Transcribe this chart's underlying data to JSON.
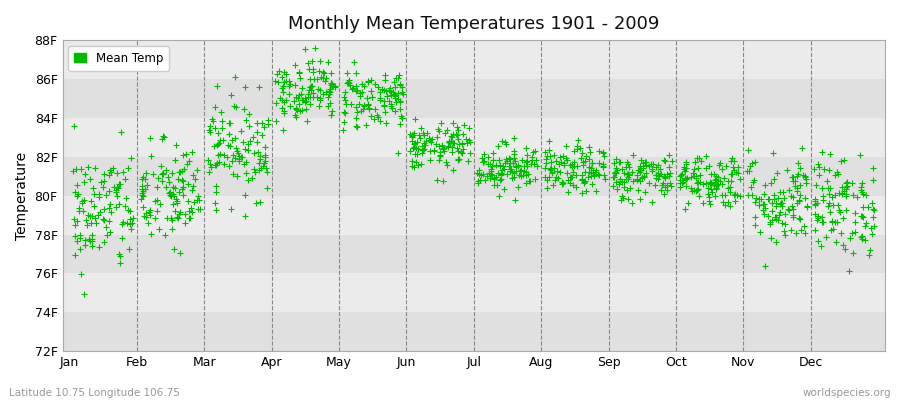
{
  "title": "Monthly Mean Temperatures 1901 - 2009",
  "ylabel": "Temperature",
  "xlabel_labels": [
    "Jan",
    "Feb",
    "Mar",
    "Apr",
    "May",
    "Jun",
    "Jul",
    "Aug",
    "Sep",
    "Oct",
    "Nov",
    "Dec"
  ],
  "ytick_labels": [
    "72F",
    "74F",
    "76F",
    "78F",
    "80F",
    "82F",
    "84F",
    "86F",
    "88F"
  ],
  "ytick_values": [
    72,
    74,
    76,
    78,
    80,
    82,
    84,
    86,
    88
  ],
  "ylim": [
    72,
    88
  ],
  "legend_label": "Mean Temp",
  "marker_color": "#00bb00",
  "marker": "+",
  "marker_size": 4,
  "background_color_light": "#ebebeb",
  "background_color_dark": "#e0e0e0",
  "fig_bg_color": "#ffffff",
  "footnote_left": "Latitude 10.75 Longitude 106.75",
  "footnote_right": "worldspecies.org",
  "years": 109,
  "monthly_means": [
    79.2,
    80.0,
    82.5,
    85.5,
    85.0,
    82.5,
    81.5,
    81.3,
    81.0,
    80.8,
    79.8,
    79.5
  ],
  "monthly_stds": [
    1.6,
    1.4,
    1.3,
    0.8,
    0.8,
    0.6,
    0.6,
    0.6,
    0.6,
    0.7,
    1.2,
    1.3
  ],
  "seed": 42
}
